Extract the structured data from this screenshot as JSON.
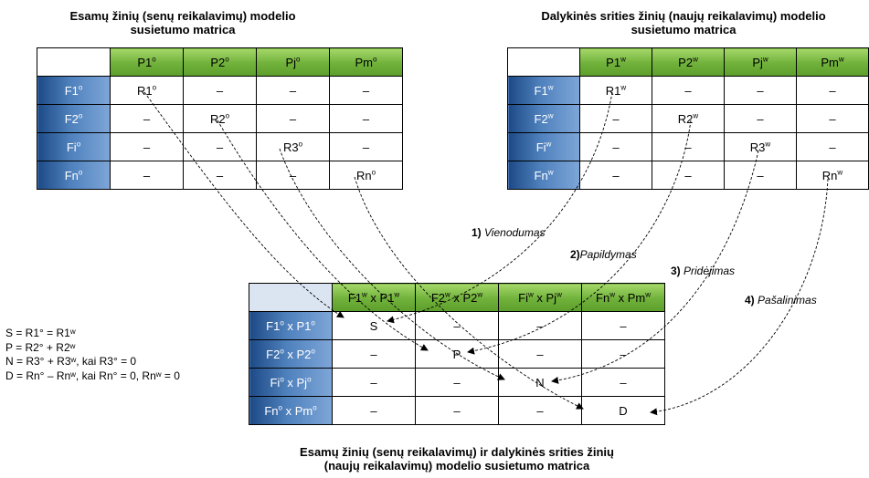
{
  "left_title": [
    "Esamų žinių (senų reikalavimų) modelio",
    "susietumo matrica"
  ],
  "right_title": [
    "Dalykinės srities žinių (naujų reikalavimų) modelio",
    "susietumo matrica"
  ],
  "bottom_title": [
    "Esamų žinių (senų reikalavimų) ir dalykinės srities žinių",
    "(naujų reikalavimų) modelio susietumo matrica"
  ],
  "left_matrix": {
    "cols": [
      "P1",
      "P2",
      "Pj",
      "Pm"
    ],
    "col_sup": "o",
    "rows": [
      "F1",
      "F2",
      "Fi",
      "Fn"
    ],
    "row_sup": "o",
    "diag": [
      "R1",
      "R2",
      "R3",
      "Rn"
    ],
    "empty": "–"
  },
  "right_matrix": {
    "cols": [
      "P1",
      "P2",
      "Pj",
      "Pm"
    ],
    "col_sup": "w",
    "rows": [
      "F1",
      "F2",
      "Fi",
      "Fn"
    ],
    "row_sup": "w",
    "diag": [
      "R1",
      "R2",
      "R3",
      "Rn"
    ],
    "empty": "–"
  },
  "bottom_matrix": {
    "cols": [
      [
        "F1",
        "w",
        " x P1",
        "w"
      ],
      [
        "F2",
        "w",
        " x P2",
        "w"
      ],
      [
        "Fi",
        "w",
        " x Pj",
        "w"
      ],
      [
        "Fn",
        "w",
        " x Pm",
        "w"
      ]
    ],
    "rows": [
      [
        "F1",
        "o",
        " x P1",
        "o"
      ],
      [
        "F2",
        "o",
        " x P2",
        "o"
      ],
      [
        "Fi",
        "o",
        " x Pj",
        "o"
      ],
      [
        "Fn",
        "o",
        " x Pm",
        "o"
      ]
    ],
    "diag": [
      "S",
      "P",
      "N",
      "D"
    ],
    "empty": "–"
  },
  "operations": [
    {
      "num": "1)",
      "name": "Vienodumas"
    },
    {
      "num": "2)",
      "name": "Papildymas"
    },
    {
      "num": "3)",
      "name": "Pridėjimas"
    },
    {
      "num": "4)",
      "name": "Pašalinimas"
    }
  ],
  "formulas": [
    "S = R1° = R1ʷ",
    "P = R2° + R2ʷ",
    "N = R3° + R3ʷ, kai R3° = 0",
    "D = Rn° – Rnʷ, kai Rn° = 0, Rnʷ = 0"
  ],
  "colors": {
    "green_header": "#7fc34a",
    "blue_header": "#4f81bd",
    "corner_light": "#dbe5f1"
  }
}
